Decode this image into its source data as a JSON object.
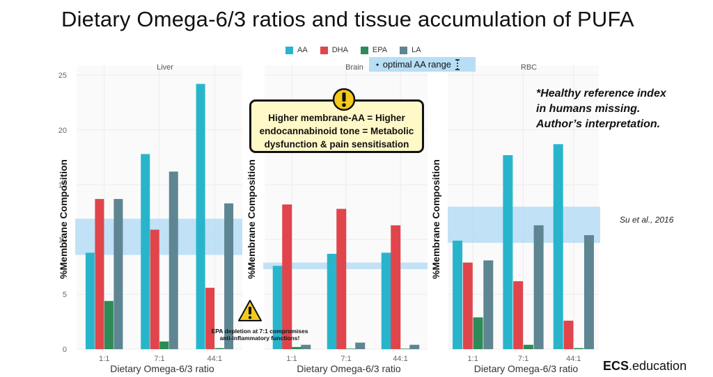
{
  "slide_title": "Dietary Omega-6/3 ratios and tissue accumulation of PUFA",
  "legend": [
    {
      "label": "AA",
      "color": "#28b5cc"
    },
    {
      "label": "DHA",
      "color": "#e0454b"
    },
    {
      "label": "EPA",
      "color": "#2e8b57"
    },
    {
      "label": "LA",
      "color": "#5e8592"
    }
  ],
  "optimal_label": "⋆ optimal AA range",
  "warning_icon": "exclamation-circle-icon",
  "warning_text": "Higher membrane-AA = Higher\nendocannabinoid tone = Metabolic\ndysfunction & pain sensitisation",
  "note": "*Healthy reference index\nin humans missing.\nAuthor’s interpretation.",
  "citation": "Su et al., 2016",
  "epa_warning_icon": "warning-triangle-icon",
  "epa_warning": "EPA depletion at 7:1 compromises\nanti-inflammatory functions!",
  "brand": {
    "bold": "ECS",
    "rest": ".education"
  },
  "chart_data": [
    {
      "type": "bar",
      "title": "Liver",
      "categories": [
        "1:1",
        "7:1",
        "44:1"
      ],
      "series": [
        {
          "name": "AA",
          "values": [
            8.8,
            17.8,
            24.2
          ]
        },
        {
          "name": "DHA",
          "values": [
            13.7,
            10.9,
            5.6
          ]
        },
        {
          "name": "EPA",
          "values": [
            4.4,
            0.7,
            0.1
          ]
        },
        {
          "name": "LA",
          "values": [
            13.7,
            16.2,
            13.3
          ]
        }
      ],
      "ylim": [
        0,
        25
      ],
      "yticks": [
        "0",
        "5",
        "10",
        "15",
        "20",
        "25"
      ],
      "xlabel": "Dietary Omega-6/3 ratio",
      "ylabel": "%Membrane Composition",
      "optimal_range": [
        8.6,
        11.9
      ]
    },
    {
      "type": "bar",
      "title": "Brain",
      "categories": [
        "1:1",
        "7:1",
        "44:1"
      ],
      "series": [
        {
          "name": "AA",
          "values": [
            7.6,
            8.7,
            8.8
          ]
        },
        {
          "name": "DHA",
          "values": [
            13.2,
            12.8,
            11.3
          ]
        },
        {
          "name": "EPA",
          "values": [
            0.2,
            0.05,
            0.05
          ]
        },
        {
          "name": "LA",
          "values": [
            0.4,
            0.6,
            0.4
          ]
        }
      ],
      "ylim": [
        0,
        25
      ],
      "xlabel": "Dietary Omega-6/3 ratio",
      "ylabel": "%Membrane Composition",
      "optimal_range": [
        7.3,
        7.9
      ]
    },
    {
      "type": "bar",
      "title": "RBC",
      "categories": [
        "1:1",
        "7:1",
        "44:1"
      ],
      "series": [
        {
          "name": "AA",
          "values": [
            9.9,
            17.7,
            18.7
          ]
        },
        {
          "name": "DHA",
          "values": [
            7.9,
            6.2,
            2.6
          ]
        },
        {
          "name": "EPA",
          "values": [
            2.9,
            0.4,
            0.1
          ]
        },
        {
          "name": "LA",
          "values": [
            8.1,
            11.3,
            10.4
          ]
        }
      ],
      "ylim": [
        0,
        25
      ],
      "xlabel": "Dietary Omega-6/3 ratio",
      "ylabel": "%Membrane Composition",
      "optimal_range": [
        9.7,
        13.0
      ]
    }
  ]
}
